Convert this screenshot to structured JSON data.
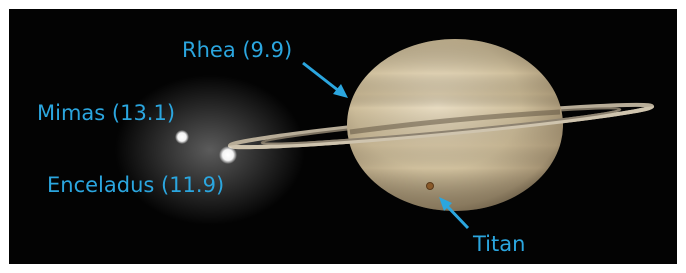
{
  "labels": [
    "Rhea (9.9)",
    "Mimas (13.1)",
    "Enceladus (11.9)",
    "Titan"
  ]
}
